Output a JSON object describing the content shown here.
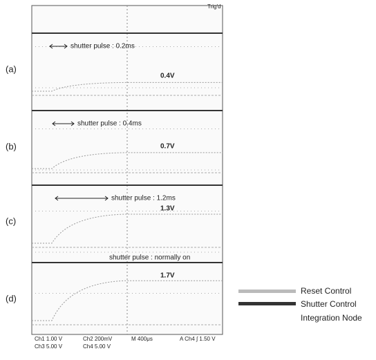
{
  "scope": {
    "header": "Trig'd",
    "footer_row1": [
      "Ch1  1.00 V",
      "Ch2  200mV",
      "M 400μs",
      "A  Ch4 ∫ 1.50 V"
    ],
    "footer_row2": [
      "Ch3  5.00 V",
      "Ch4  5.00 V"
    ]
  },
  "panels": [
    {
      "label": "(a)",
      "pulse": "shutter pulse : 0.2ms",
      "voltage": "0.4V"
    },
    {
      "label": "(b)",
      "pulse": "shutter pulse : 0.4ms",
      "voltage": "0.7V"
    },
    {
      "label": "(c)",
      "pulse": "shutter pulse : 1.2ms",
      "voltage": "1.3V"
    },
    {
      "label": "(d)",
      "pulse": "shutter pulse : normally on",
      "voltage": "1.7V"
    }
  ],
  "legend": [
    "Reset Control",
    "Shutter Control",
    "Integration Node"
  ]
}
